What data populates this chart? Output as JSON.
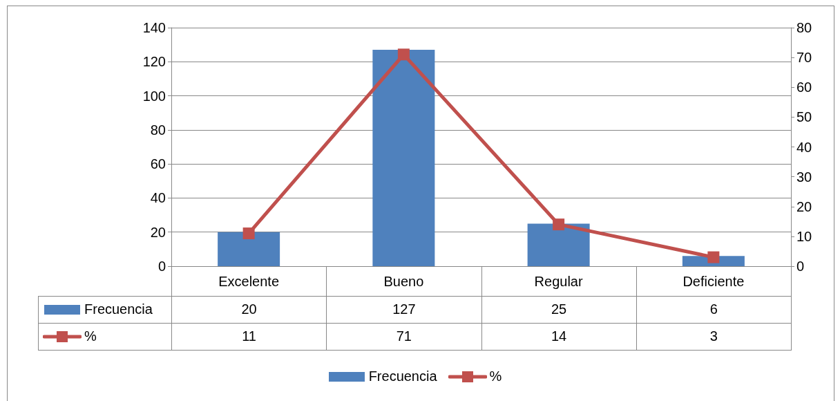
{
  "chart_data": {
    "type": "bar",
    "categories": [
      "Excelente",
      "Bueno",
      "Regular",
      "Deficiente"
    ],
    "series": [
      {
        "name": "Frecuencia",
        "type": "bar",
        "color": "#4f81bd",
        "values": [
          20,
          127,
          25,
          6
        ]
      },
      {
        "name": "%",
        "type": "line",
        "axis": "y2",
        "color": "#c0504d",
        "values": [
          11,
          71,
          14,
          3
        ]
      }
    ],
    "ylim": [
      0,
      140
    ],
    "yticks": [
      0,
      20,
      40,
      60,
      80,
      100,
      120,
      140
    ],
    "y2lim": [
      0,
      80
    ],
    "y2ticks": [
      0,
      10,
      20,
      30,
      40,
      50,
      60,
      70,
      80
    ],
    "grid": "y",
    "legend": "bottom",
    "marker": "square",
    "line_style": "solid",
    "data_labels": true
  }
}
